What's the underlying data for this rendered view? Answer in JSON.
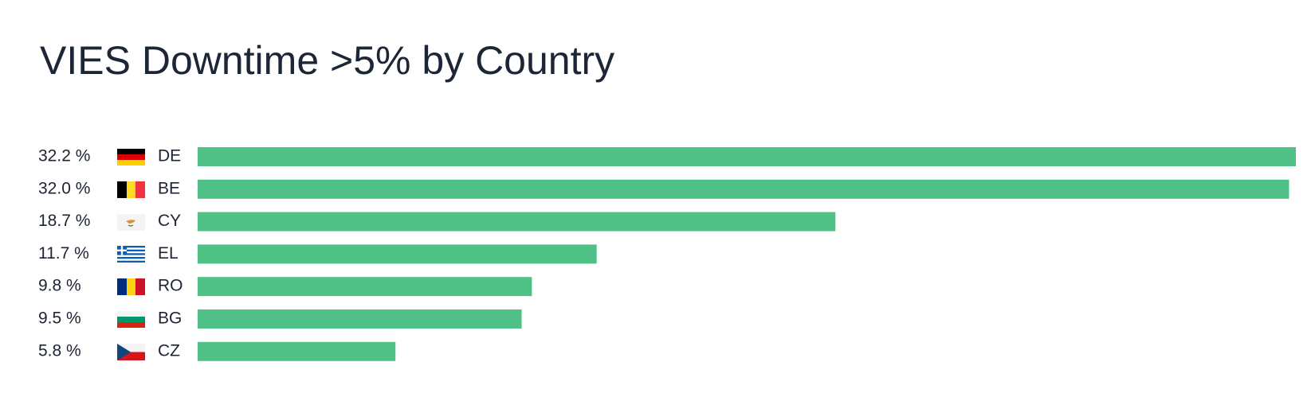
{
  "chart_data": {
    "type": "bar",
    "orientation": "horizontal",
    "title": "VIES Downtime >5% by Country",
    "categories": [
      "DE",
      "BE",
      "CY",
      "EL",
      "RO",
      "BG",
      "CZ"
    ],
    "values": [
      32.2,
      32.0,
      18.7,
      11.7,
      9.8,
      9.5,
      5.8
    ],
    "value_labels": [
      "32.2 %",
      "32.0 %",
      "18.7 %",
      "11.7 %",
      "9.8 %",
      "9.5 %",
      "5.8 %"
    ],
    "color": "#4fc187"
  }
}
